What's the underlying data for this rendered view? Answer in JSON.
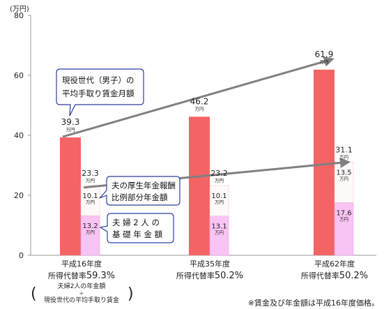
{
  "chart_data": {
    "type": "bar",
    "unit_label": "(万円)",
    "ylim": [
      0,
      80
    ],
    "yticks": [
      "0",
      "20",
      "40",
      "60",
      "80"
    ],
    "ytick_values": [
      0,
      20,
      40,
      60,
      80
    ],
    "categories": [
      {
        "line1": "平成16年度",
        "line2_prefix": "所得代替率",
        "rate": "59.3%"
      },
      {
        "line1": "平成35年度",
        "line2_prefix": "所得代替率",
        "rate": "50.2%"
      },
      {
        "line1": "平成62年度",
        "line2_prefix": "所得代替率",
        "rate": "50.2%"
      }
    ],
    "wage": {
      "values": [
        39.3,
        46.2,
        61.9
      ],
      "labels": [
        "39.3",
        "46.2",
        "61.9"
      ],
      "unit": "万円",
      "color": "#f46465"
    },
    "pension_total": {
      "values": [
        23.3,
        23.2,
        31.1
      ],
      "labels": [
        "23.3",
        "23.2",
        "31.1"
      ],
      "unit": "万円"
    },
    "basic_pension": {
      "values": [
        13.2,
        13.1,
        17.6
      ],
      "labels": [
        "13.2",
        "13.1",
        "17.6"
      ],
      "unit": "万円",
      "color": "#f8c4f4"
    },
    "earnings_related": {
      "values": [
        10.1,
        10.1,
        13.5
      ],
      "labels": [
        "10.1",
        "10.1",
        "13.5"
      ],
      "unit": "万円",
      "color": "#fffafa"
    },
    "callouts": {
      "wage": [
        "現役世代（男子）の",
        "平均手取り賃金月額"
      ],
      "earnings": [
        "夫の厚生年金報酬",
        "比例部分年金額"
      ],
      "basic": [
        "夫 婦 2 人 の",
        "基 礎 年 金 額"
      ]
    },
    "formula": {
      "numerator": "夫婦2人の年金額",
      "sign": "÷",
      "denominator": "現役世代の平均手取り賃金"
    },
    "footnote": "※賃金及び年金額は平成16年度価格。",
    "colors": {
      "arrow": "#808080",
      "callout_border": "#2b3f9e",
      "axis": "#999999"
    }
  }
}
